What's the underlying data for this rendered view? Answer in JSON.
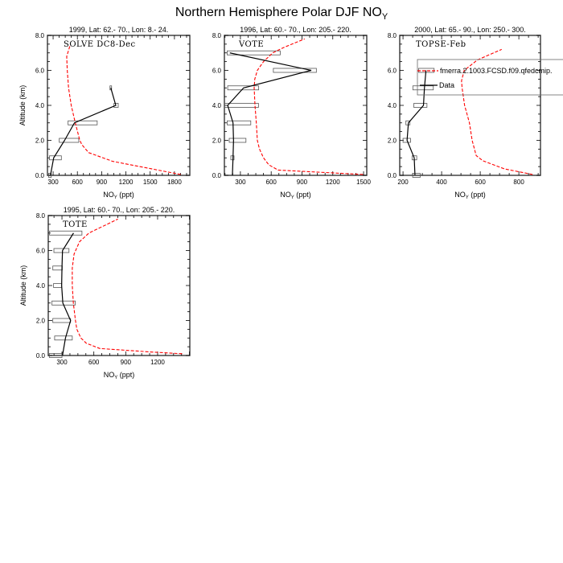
{
  "title": {
    "main": "Northern Hemisphere Polar DJF NO",
    "sub": "Y"
  },
  "chart_data": [
    {
      "type": "line",
      "subtitle": "1999, Lat: 62.- 70., Lon: 8.- 24.",
      "campaign": "SOLVE DC8-Dec",
      "ylabel": "Altitude (km)",
      "xlabel": {
        "main": "NO",
        "sub": "Y",
        "unit": " (ppt)"
      },
      "xlim": [
        230,
        1990
      ],
      "ylim": [
        0,
        8
      ],
      "xticks": [
        300,
        600,
        900,
        1200,
        1500,
        1800
      ],
      "yticks": [
        "0.0",
        "2.0",
        "4.0",
        "6.0",
        "8.0"
      ],
      "model": {
        "alt": [
          0.05,
          0.8,
          1.3,
          1.75,
          2,
          3,
          4,
          5,
          6,
          6.8,
          7.4
        ],
        "noy": [
          1877,
          1036,
          739,
          656,
          630,
          574,
          524,
          491,
          475,
          468,
          508
        ]
      },
      "data": {
        "alt": [
          0,
          1,
          2,
          3,
          4,
          5
        ],
        "noy": [
          267,
          307,
          442,
          564,
          1075,
          1013
        ]
      },
      "ranges": {
        "alt": [
          0,
          1,
          2,
          3,
          4,
          5
        ],
        "min": [
          244,
          254,
          376,
          485,
          1052,
          1003
        ],
        "max": [
          277,
          402,
          617,
          845,
          1105,
          1022
        ]
      }
    },
    {
      "type": "line",
      "subtitle": "1996, Lat: 60.- 70., Lon: 205.- 220.",
      "campaign": "VOTE",
      "ylabel": "",
      "xlabel": {
        "main": "NO",
        "sub": "Y",
        "unit": " (ppt)"
      },
      "xlim": [
        144,
        1531
      ],
      "ylim": [
        0,
        8
      ],
      "xticks": [
        300,
        600,
        900,
        1200,
        1500
      ],
      "yticks": [
        "0.0",
        "2.0",
        "4.0",
        "6.0",
        "8.0"
      ],
      "model": {
        "alt": [
          0.05,
          0.3,
          0.6,
          1,
          1.5,
          2,
          3,
          4,
          5,
          5.5,
          6,
          6.5,
          7,
          7.3,
          7.8
        ],
        "noy": [
          1495,
          667,
          577,
          525,
          486,
          465,
          455,
          442,
          434,
          440,
          465,
          525,
          615,
          719,
          926
        ]
      },
      "data": {
        "alt": [
          0,
          1,
          2,
          3,
          4,
          5,
          6,
          7
        ],
        "noy": [
          222,
          228,
          233,
          228,
          176,
          331,
          990,
          197
        ]
      },
      "ranges": {
        "alt": [
          1,
          2,
          3,
          4,
          5,
          6,
          7
        ],
        "min": [
          207,
          191,
          171,
          145,
          176,
          621,
          171
        ],
        "max": [
          238,
          354,
          401,
          476,
          478,
          1040,
          688
        ]
      }
    },
    {
      "type": "line",
      "subtitle": "2000, Lat: 65.- 90., Lon: 250.- 300.",
      "campaign": "TOPSE-Feb",
      "ylabel": "",
      "xlabel": {
        "main": "NO",
        "sub": "Y",
        "unit": " (ppt)"
      },
      "xlim": [
        183,
        912
      ],
      "ylim": [
        0,
        8
      ],
      "xticks": [
        200,
        400,
        600,
        800
      ],
      "yticks": [
        "0.0",
        "2.0",
        "4.0",
        "6.0",
        "8.0"
      ],
      "model": {
        "alt": [
          0.05,
          0.37,
          0.83,
          1.13,
          2,
          3,
          4,
          5,
          5.4,
          6,
          6.6,
          7.2
        ],
        "noy": [
          871,
          725,
          614,
          579,
          558,
          544,
          519,
          506,
          503,
          517,
          586,
          711
        ]
      },
      "data": {
        "alt": [
          0,
          1,
          2,
          3,
          4,
          5,
          6
        ],
        "noy": [
          262,
          258,
          221,
          228,
          306,
          311,
          319
        ]
      },
      "ranges": {
        "alt": [
          0,
          1,
          2,
          3,
          4,
          5,
          6
        ],
        "min": [
          250,
          247,
          200,
          215,
          256,
          251,
          281
        ],
        "max": [
          289,
          271,
          239,
          236,
          324,
          357,
          361
        ]
      },
      "legend": {
        "placement": "upper-right, overflowing panel",
        "entries": [
          "fmerra.2.1003.FCSD.f09.qfedcmip.",
          "Data"
        ]
      }
    },
    {
      "type": "line",
      "subtitle": "1995, Lat: 60.- 70., Lon: 205.- 220.",
      "campaign": "TOTE",
      "ylabel": "Altitude (km)",
      "xlabel": {
        "main": "NO",
        "sub": "Y",
        "unit": " (ppt)"
      },
      "xlim": [
        171,
        1503
      ],
      "ylim": [
        0,
        8
      ],
      "xticks": [
        300,
        600,
        900,
        1200
      ],
      "yticks": [
        "0.0",
        "2.0",
        "4.0",
        "6.0",
        "8.0"
      ],
      "model": {
        "alt": [
          0.1,
          0.2,
          0.4,
          0.7,
          1,
          1.5,
          2,
          3,
          4,
          5,
          5.8,
          6.5,
          7,
          7.8
        ],
        "noy": [
          1431,
          1139,
          656,
          529,
          478,
          440,
          427,
          407,
          397,
          397,
          414,
          465,
          554,
          826
        ]
      },
      "data": {
        "alt": [
          0,
          1,
          2,
          3,
          4,
          5,
          6,
          7
        ],
        "noy": [
          305,
          333,
          381,
          308,
          297,
          300,
          305,
          409
        ]
      },
      "ranges": {
        "alt": [
          0,
          1,
          2,
          3,
          4,
          5,
          6,
          7
        ],
        "min": [
          181,
          231,
          214,
          206,
          221,
          214,
          224,
          183
        ],
        "max": [
          300,
          397,
          381,
          425,
          297,
          303,
          366,
          488
        ]
      }
    }
  ],
  "colors": {
    "model": "#ff0000",
    "data": "#000000",
    "axis": "#444444"
  }
}
